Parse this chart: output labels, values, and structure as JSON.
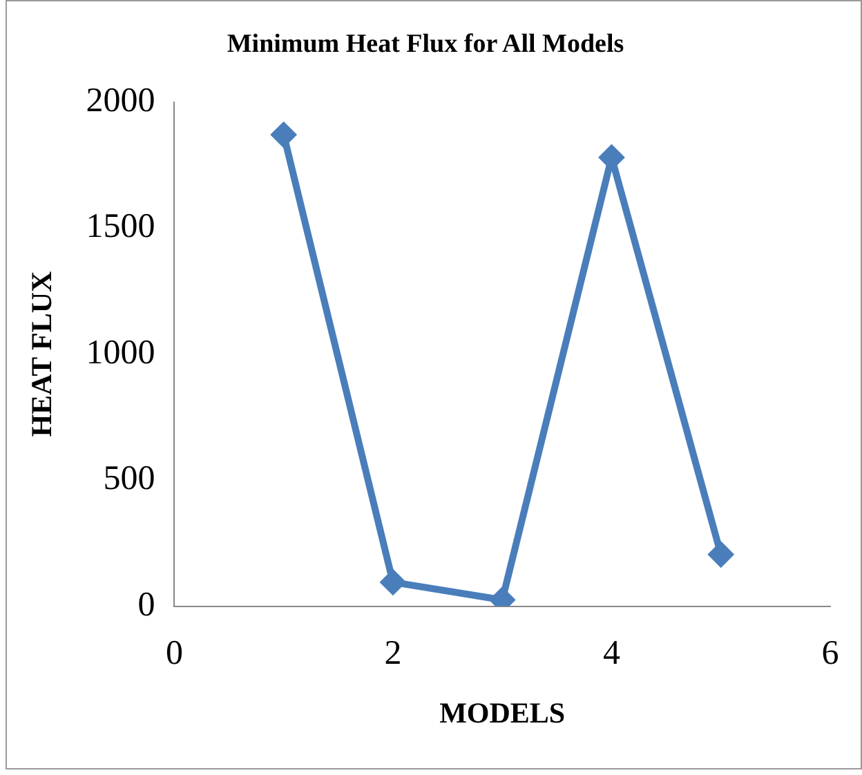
{
  "chart_data": {
    "type": "line",
    "title": "Minimum Heat Flux for All Models",
    "xlabel": "MODELS",
    "ylabel": "HEAT FLUX",
    "x": [
      1,
      2,
      3,
      4,
      5
    ],
    "series": [
      {
        "color": "#4a7ebb",
        "values": [
          1870,
          95,
          25,
          1780,
          205
        ]
      }
    ],
    "xlim": [
      0,
      6
    ],
    "xticks": [
      0,
      2,
      4,
      6
    ],
    "ylim": [
      0,
      2000
    ],
    "yticks": [
      0,
      500,
      1000,
      1500,
      2000
    ],
    "grid": false,
    "legend": false,
    "marker": "diamond",
    "line_style": "solid"
  }
}
